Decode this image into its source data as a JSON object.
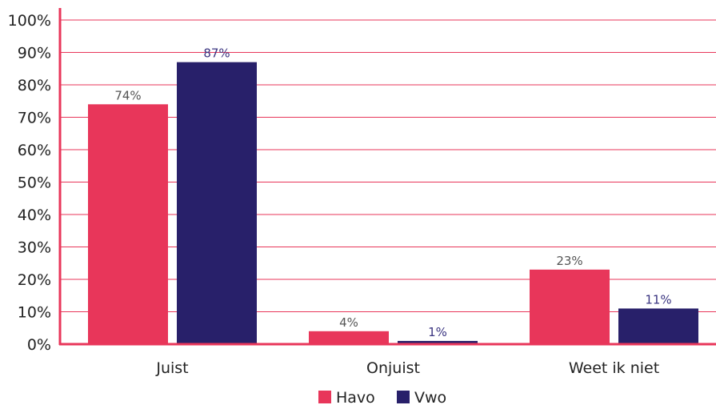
{
  "chart_data": {
    "type": "bar",
    "title": "",
    "xlabel": "",
    "ylabel": "",
    "categories": [
      "Juist",
      "Onjuist",
      "Weet ik niet"
    ],
    "series": [
      {
        "name": "Havo",
        "values": [
          74,
          4,
          23
        ],
        "labels": [
          "74%",
          "4%",
          "23%"
        ],
        "color": "#e8365a"
      },
      {
        "name": "Vwo",
        "values": [
          87,
          1,
          11
        ],
        "labels": [
          "87%",
          "1%",
          "11%"
        ],
        "color": "#28206a"
      }
    ],
    "ylim": [
      0,
      100
    ],
    "yticks": [
      0,
      10,
      20,
      30,
      40,
      50,
      60,
      70,
      80,
      90,
      100
    ],
    "ytick_labels": [
      "0%",
      "10%",
      "20%",
      "30%",
      "40%",
      "50%",
      "60%",
      "70%",
      "80%",
      "90%",
      "100%"
    ],
    "grid": true,
    "legend_position": "bottom",
    "axis_color": "#e8365a",
    "grid_color": "#e8365a"
  }
}
